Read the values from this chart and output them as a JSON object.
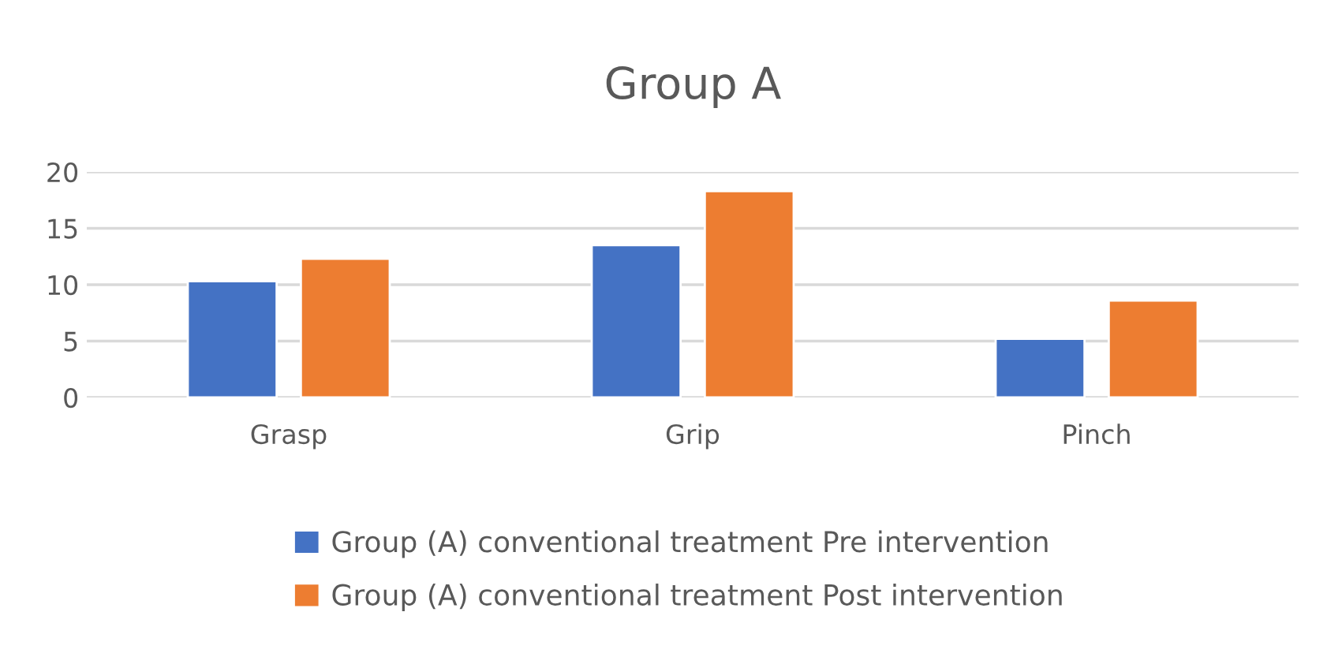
{
  "chart_data": {
    "type": "bar",
    "title": "Group A",
    "categories": [
      "Grasp",
      "Grip",
      "Pinch"
    ],
    "series": [
      {
        "name": "Group (A) conventional treatment Pre intervention",
        "color": "#4472c4",
        "values": [
          10.3,
          13.5,
          5.2
        ]
      },
      {
        "name": "Group (A) conventional treatment Post intervention",
        "color": "#ed7d31",
        "values": [
          12.3,
          18.3,
          8.6
        ]
      }
    ],
    "ylim": [
      0,
      20
    ],
    "yticks": [
      0,
      5,
      10,
      15,
      20
    ],
    "grid": "y",
    "legend": "bottom"
  }
}
